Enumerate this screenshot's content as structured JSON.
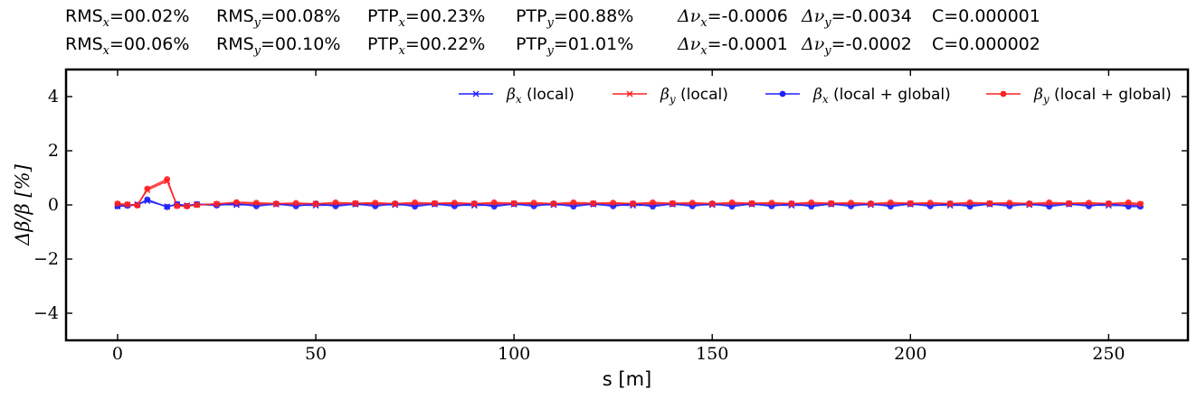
{
  "stats_rows": [
    [
      "RMS_x=00.02%",
      "RMS_y=00.08%",
      "PTP_x=00.23%",
      "PTP_y=00.88%",
      "Δν_x=-0.0006",
      "Δν_y=-0.0034",
      "C=0.000001"
    ],
    [
      "RMS_x=00.06%",
      "RMS_y=00.10%",
      "PTP_x=00.22%",
      "PTP_y=01.01%",
      "Δν_x=-0.0001",
      "Δν_y=-0.0002",
      "C=0.000002"
    ]
  ],
  "stats": {
    "row1": {
      "rmsx_pre": "RMS",
      "rmsx_sub": "x",
      "rmsx_val": "=00.02%",
      "rmsy_pre": "RMS",
      "rmsy_sub": "y",
      "rmsy_val": "=00.08%",
      "ptpx_pre": "PTP",
      "ptpx_sub": "x",
      "ptpx_val": "=00.23%",
      "ptpy_pre": "PTP",
      "ptpy_sub": "y",
      "ptpy_val": "=00.88%",
      "dnux_pre": "Δν",
      "dnux_sub": "x",
      "dnux_val": "=-0.0006",
      "dnuy_pre": "Δν",
      "dnuy_sub": "y",
      "dnuy_val": "=-0.0034",
      "c": "C=0.000001"
    },
    "row2": {
      "rmsx_pre": "RMS",
      "rmsx_sub": "x",
      "rmsx_val": "=00.06%",
      "rmsy_pre": "RMS",
      "rmsy_sub": "y",
      "rmsy_val": "=00.10%",
      "ptpx_pre": "PTP",
      "ptpx_sub": "x",
      "ptpx_val": "=00.22%",
      "ptpy_pre": "PTP",
      "ptpy_sub": "y",
      "ptpy_val": "=01.01%",
      "dnux_pre": "Δν",
      "dnux_sub": "x",
      "dnux_val": "=-0.0001",
      "dnuy_pre": "Δν",
      "dnuy_sub": "y",
      "dnuy_val": "=-0.0002",
      "c": "C=0.000002"
    }
  },
  "colors": {
    "blue": "#1f1fff",
    "red": "#ff2020",
    "axis": "#000000"
  },
  "chart_data": {
    "type": "line",
    "xlabel": "s [m]",
    "ylabel": "Δβ/β [%]",
    "xlim": [
      -13,
      270
    ],
    "ylim": [
      -5,
      5
    ],
    "xticks": [
      0,
      50,
      100,
      150,
      200,
      250
    ],
    "yticks": [
      -4,
      -2,
      0,
      2,
      4
    ],
    "grid": false,
    "legend_position": "top-right",
    "series": [
      {
        "name": "β_x (local)",
        "color": "blue",
        "marker": "x",
        "x": [
          0,
          2.5,
          5,
          7.5,
          12.5,
          15,
          17.5,
          20,
          25,
          30,
          40,
          50,
          60,
          70,
          80,
          90,
          100,
          110,
          120,
          130,
          140,
          150,
          160,
          170,
          180,
          190,
          200,
          210,
          220,
          230,
          240,
          250,
          258
        ],
        "y": [
          -0.05,
          0.0,
          0.02,
          0.15,
          -0.06,
          0.02,
          -0.02,
          0.02,
          0.02,
          0.0,
          0.02,
          -0.02,
          0.02,
          0.0,
          0.02,
          -0.02,
          0.02,
          0.0,
          0.02,
          -0.02,
          0.02,
          0.0,
          0.02,
          -0.02,
          0.02,
          0.0,
          0.02,
          -0.02,
          0.02,
          0.0,
          0.02,
          -0.02,
          -0.02
        ]
      },
      {
        "name": "β_y (local)",
        "color": "red",
        "marker": "x",
        "x": [
          0,
          2.5,
          5,
          7.5,
          12.5,
          15,
          17.5,
          20,
          25,
          30,
          40,
          50,
          60,
          70,
          80,
          90,
          100,
          110,
          120,
          130,
          140,
          150,
          160,
          170,
          180,
          190,
          200,
          210,
          220,
          230,
          240,
          250,
          258
        ],
        "y": [
          0.02,
          0.0,
          0.0,
          0.55,
          0.88,
          -0.02,
          -0.03,
          0.0,
          0.02,
          0.05,
          0.03,
          0.04,
          0.05,
          0.03,
          0.05,
          0.04,
          0.05,
          0.03,
          0.05,
          0.04,
          0.05,
          0.03,
          0.05,
          0.04,
          0.05,
          0.03,
          0.05,
          0.04,
          0.05,
          0.03,
          0.05,
          0.04,
          0.02
        ]
      },
      {
        "name": "β_x (local + global)",
        "color": "blue",
        "marker": "o",
        "x": [
          0,
          2.5,
          5,
          7.5,
          12.5,
          15,
          17.5,
          20,
          25,
          30,
          35,
          40,
          45,
          50,
          55,
          60,
          65,
          70,
          75,
          80,
          85,
          90,
          95,
          100,
          105,
          110,
          115,
          120,
          125,
          130,
          135,
          140,
          145,
          150,
          155,
          160,
          165,
          170,
          175,
          180,
          185,
          190,
          195,
          200,
          205,
          210,
          215,
          220,
          225,
          230,
          235,
          240,
          245,
          250,
          255,
          258
        ],
        "y": [
          -0.05,
          -0.03,
          0.0,
          0.2,
          -0.08,
          0.03,
          -0.04,
          0.03,
          -0.02,
          0.05,
          -0.05,
          0.04,
          -0.05,
          0.05,
          -0.05,
          0.04,
          -0.05,
          0.05,
          -0.06,
          0.04,
          -0.05,
          0.05,
          -0.06,
          0.04,
          -0.05,
          0.05,
          -0.06,
          0.04,
          -0.05,
          0.05,
          -0.06,
          0.04,
          -0.05,
          0.05,
          -0.06,
          0.04,
          -0.05,
          0.05,
          -0.06,
          0.04,
          -0.05,
          0.05,
          -0.06,
          0.04,
          -0.05,
          0.05,
          -0.06,
          0.04,
          -0.05,
          0.05,
          -0.06,
          0.04,
          -0.05,
          0.05,
          -0.06,
          -0.06
        ]
      },
      {
        "name": "β_y (local + global)",
        "color": "red",
        "marker": "o",
        "x": [
          0,
          2.5,
          5,
          7.5,
          12.5,
          15,
          17.5,
          20,
          25,
          30,
          35,
          40,
          45,
          50,
          55,
          60,
          65,
          70,
          75,
          80,
          85,
          90,
          95,
          100,
          105,
          110,
          115,
          120,
          125,
          130,
          135,
          140,
          145,
          150,
          155,
          160,
          165,
          170,
          175,
          180,
          185,
          190,
          195,
          200,
          205,
          210,
          215,
          220,
          225,
          230,
          235,
          240,
          245,
          250,
          255,
          258
        ],
        "y": [
          0.05,
          0.02,
          -0.02,
          0.6,
          0.95,
          -0.04,
          -0.05,
          0.0,
          0.04,
          0.1,
          0.08,
          0.05,
          0.07,
          0.04,
          0.09,
          0.06,
          0.08,
          0.05,
          0.09,
          0.06,
          0.08,
          0.05,
          0.09,
          0.06,
          0.08,
          0.05,
          0.09,
          0.06,
          0.08,
          0.05,
          0.09,
          0.06,
          0.08,
          0.05,
          0.09,
          0.06,
          0.08,
          0.05,
          0.09,
          0.06,
          0.08,
          0.05,
          0.09,
          0.06,
          0.08,
          0.05,
          0.09,
          0.06,
          0.08,
          0.05,
          0.09,
          0.06,
          0.08,
          0.05,
          0.09,
          0.04
        ]
      }
    ]
  }
}
